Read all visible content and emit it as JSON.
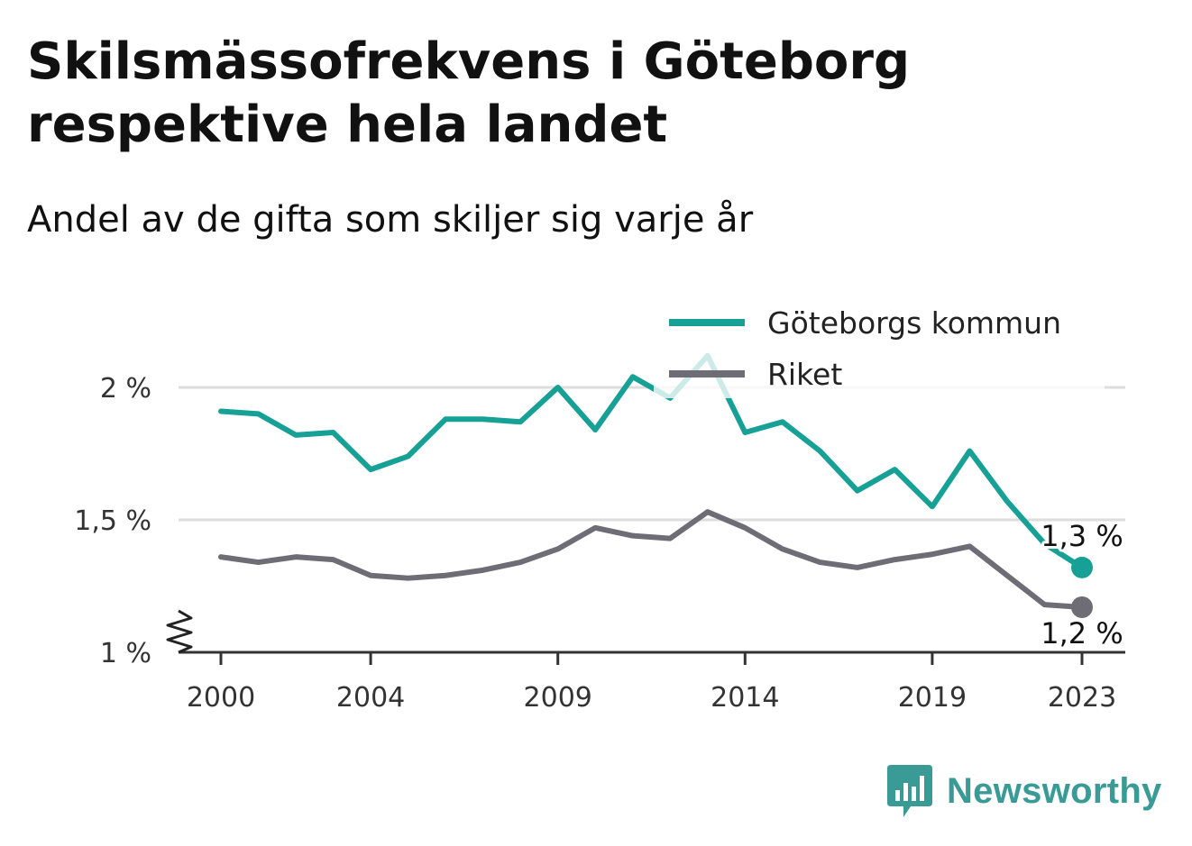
{
  "title": "Skilsmässofrekvens i Göteborg respektive hela landet",
  "subtitle": "Andel av de gifta som skiljer sig varje år",
  "brand": {
    "name": "Newsworthy",
    "color": "#3a9a96"
  },
  "chart_data": {
    "type": "line",
    "x": [
      2000,
      2001,
      2002,
      2003,
      2004,
      2005,
      2006,
      2007,
      2008,
      2009,
      2010,
      2011,
      2012,
      2013,
      2014,
      2015,
      2016,
      2017,
      2018,
      2019,
      2020,
      2021,
      2022,
      2023
    ],
    "x_ticks": [
      {
        "value": 2000,
        "label": "2000"
      },
      {
        "value": 2004,
        "label": "2004"
      },
      {
        "value": 2009,
        "label": "2009"
      },
      {
        "value": 2014,
        "label": "2014"
      },
      {
        "value": 2019,
        "label": "2019"
      },
      {
        "value": 2023,
        "label": "2023"
      }
    ],
    "y_ticks": [
      {
        "value": 1.0,
        "label": "1 %"
      },
      {
        "value": 1.5,
        "label": "1,5 %"
      },
      {
        "value": 2.0,
        "label": "2 %"
      }
    ],
    "ylim": [
      1.0,
      2.0
    ],
    "xlim": [
      2000,
      2023
    ],
    "grid": true,
    "legend_position": "top-right",
    "axis_break": true,
    "series": [
      {
        "name": "Göteborgs kommun",
        "color": "#16a096",
        "values": [
          1.91,
          1.9,
          1.82,
          1.83,
          1.69,
          1.74,
          1.88,
          1.88,
          1.87,
          2.0,
          1.84,
          2.04,
          1.96,
          2.12,
          1.83,
          1.87,
          1.76,
          1.61,
          1.69,
          1.55,
          1.76,
          1.57,
          1.41,
          1.32
        ],
        "end_label": "1,3 %"
      },
      {
        "name": "Riket",
        "color": "#6e6d75",
        "values": [
          1.36,
          1.34,
          1.36,
          1.35,
          1.29,
          1.28,
          1.29,
          1.31,
          1.34,
          1.39,
          1.47,
          1.44,
          1.43,
          1.53,
          1.47,
          1.39,
          1.34,
          1.32,
          1.35,
          1.37,
          1.4,
          1.29,
          1.18,
          1.17
        ],
        "end_label": "1,2 %"
      }
    ]
  }
}
